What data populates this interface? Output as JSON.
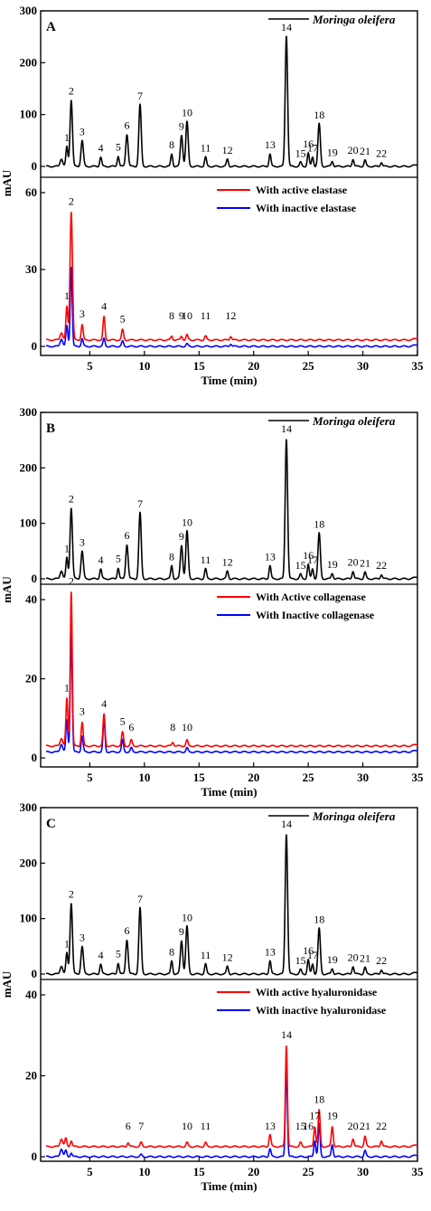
{
  "chart_data": [
    {
      "panel": "A",
      "type": "line",
      "xlabel": "Time (min)",
      "ylabel": "mAU",
      "xlim": [
        0.5,
        35
      ],
      "xticks": [
        "5",
        "10",
        "15",
        "20",
        "25",
        "30",
        "35"
      ],
      "xtick_values": [
        5,
        10,
        15,
        20,
        25,
        30,
        35
      ],
      "top": {
        "ylim": [
          0,
          300
        ],
        "yticks": [
          "0",
          "100",
          "200",
          "300"
        ],
        "ytick_values": [
          0,
          100,
          200,
          300
        ],
        "series_label": "Moringa oleifera",
        "series": [
          {
            "color": "#000000",
            "baseline": 0,
            "peaks": [
              {
                "label": "1",
                "t": 2.9,
                "h": 38
              },
              {
                "label": "2",
                "t": 3.3,
                "h": 128
              },
              {
                "label": "3",
                "t": 4.3,
                "h": 50
              },
              {
                "label": "4",
                "t": 6.0,
                "h": 18
              },
              {
                "label": "5",
                "t": 7.6,
                "h": 20
              },
              {
                "label": "6",
                "t": 8.4,
                "h": 62
              },
              {
                "label": "7",
                "t": 9.6,
                "h": 119
              },
              {
                "label": "8",
                "t": 12.5,
                "h": 24
              },
              {
                "label": "9",
                "t": 13.4,
                "h": 60
              },
              {
                "label": "10",
                "t": 13.9,
                "h": 86
              },
              {
                "label": "11",
                "t": 15.6,
                "h": 18
              },
              {
                "label": "12",
                "t": 17.6,
                "h": 14
              },
              {
                "label": "13",
                "t": 21.5,
                "h": 24
              },
              {
                "label": "14",
                "t": 23.0,
                "h": 252
              },
              {
                "label": "15",
                "t": 24.3,
                "h": 8
              },
              {
                "label": "16",
                "t": 25.0,
                "h": 26
              },
              {
                "label": "17",
                "t": 25.4,
                "h": 18
              },
              {
                "label": "18",
                "t": 26.0,
                "h": 82
              },
              {
                "label": "19",
                "t": 27.2,
                "h": 10
              },
              {
                "label": "20",
                "t": 29.1,
                "h": 14
              },
              {
                "label": "21",
                "t": 30.2,
                "h": 12
              },
              {
                "label": "22",
                "t": 31.7,
                "h": 8
              }
            ]
          }
        ]
      },
      "bottom": {
        "ylim": [
          -2,
          66
        ],
        "yticks": [
          "0",
          "30",
          "60"
        ],
        "ytick_values": [
          0,
          30,
          60
        ],
        "series": [
          {
            "name": "With active elastase",
            "color": "#ff0000",
            "baseline": 2.5,
            "peaks": [
              {
                "label": "1",
                "t": 2.9,
                "h": 13
              },
              {
                "label": "2",
                "t": 3.3,
                "h": 50
              },
              {
                "label": "3",
                "t": 4.3,
                "h": 6
              },
              {
                "label": "4",
                "t": 6.3,
                "h": 9
              },
              {
                "label": "5",
                "t": 8.0,
                "h": 4
              },
              {
                "label": "8",
                "t": 12.5,
                "h": 1.5
              },
              {
                "label": "9",
                "t": 13.4,
                "h": 1.5
              },
              {
                "label": "10",
                "t": 13.9,
                "h": 2
              },
              {
                "label": "11",
                "t": 15.6,
                "h": 1.5
              },
              {
                "label": "12",
                "t": 17.9,
                "h": 1.5
              }
            ]
          },
          {
            "name": "With inactive elastase",
            "color": "#0000ff",
            "baseline": 0,
            "peaks": [
              {
                "label": "1",
                "t": 2.9,
                "h": 8
              },
              {
                "label": "2",
                "t": 3.3,
                "h": 31
              },
              {
                "label": "3",
                "t": 4.3,
                "h": 3
              },
              {
                "label": "4",
                "t": 6.3,
                "h": 3
              },
              {
                "label": "5",
                "t": 8.0,
                "h": 2
              },
              {
                "label": "10",
                "t": 13.9,
                "h": 1
              },
              {
                "label": "12",
                "t": 17.9,
                "h": 1
              }
            ]
          }
        ]
      },
      "bottom_peak_labels": [
        "1",
        "2",
        "3",
        "4",
        "5",
        "8",
        "9",
        "10",
        "11",
        "12"
      ]
    },
    {
      "panel": "B",
      "type": "line",
      "xlabel": "Time (min)",
      "ylabel": "mAU",
      "xlim": [
        0.5,
        35
      ],
      "xticks": [
        "5",
        "10",
        "15",
        "20",
        "25",
        "30",
        "35"
      ],
      "xtick_values": [
        5,
        10,
        15,
        20,
        25,
        30,
        35
      ],
      "top": {
        "ylim": [
          0,
          300
        ],
        "yticks": [
          "0",
          "100",
          "200",
          "300"
        ],
        "ytick_values": [
          0,
          100,
          200,
          300
        ],
        "series_label": "Moringa oleifera",
        "series": [
          {
            "color": "#000000",
            "baseline": 0,
            "peaks": [
              {
                "label": "1",
                "t": 2.9,
                "h": 38
              },
              {
                "label": "2",
                "t": 3.3,
                "h": 128
              },
              {
                "label": "3",
                "t": 4.3,
                "h": 50
              },
              {
                "label": "4",
                "t": 6.0,
                "h": 18
              },
              {
                "label": "5",
                "t": 7.6,
                "h": 20
              },
              {
                "label": "6",
                "t": 8.4,
                "h": 62
              },
              {
                "label": "7",
                "t": 9.6,
                "h": 119
              },
              {
                "label": "8",
                "t": 12.5,
                "h": 24
              },
              {
                "label": "9",
                "t": 13.4,
                "h": 60
              },
              {
                "label": "10",
                "t": 13.9,
                "h": 86
              },
              {
                "label": "11",
                "t": 15.6,
                "h": 18
              },
              {
                "label": "12",
                "t": 17.6,
                "h": 14
              },
              {
                "label": "13",
                "t": 21.5,
                "h": 24
              },
              {
                "label": "14",
                "t": 23.0,
                "h": 252
              },
              {
                "label": "15",
                "t": 24.3,
                "h": 8
              },
              {
                "label": "16",
                "t": 25.0,
                "h": 26
              },
              {
                "label": "17",
                "t": 25.4,
                "h": 18
              },
              {
                "label": "18",
                "t": 26.0,
                "h": 82
              },
              {
                "label": "19",
                "t": 27.2,
                "h": 10
              },
              {
                "label": "20",
                "t": 29.1,
                "h": 14
              },
              {
                "label": "21",
                "t": 30.2,
                "h": 12
              },
              {
                "label": "22",
                "t": 31.7,
                "h": 8
              }
            ]
          }
        ]
      },
      "bottom": {
        "ylim": [
          -1,
          48
        ],
        "yticks": [
          "0",
          "20",
          "40"
        ],
        "ytick_values": [
          0,
          20,
          40
        ],
        "series": [
          {
            "name": "With Active collagenase",
            "color": "#ff0000",
            "baseline": 3,
            "peaks": [
              {
                "label": "1",
                "t": 2.9,
                "h": 12
              },
              {
                "label": "2",
                "t": 3.3,
                "h": 39
              },
              {
                "label": "3",
                "t": 4.3,
                "h": 6
              },
              {
                "label": "4",
                "t": 6.3,
                "h": 8
              },
              {
                "label": "5",
                "t": 8.0,
                "h": 3.5
              },
              {
                "label": "6",
                "t": 8.8,
                "h": 1.5
              },
              {
                "label": "8",
                "t": 12.6,
                "h": 1
              },
              {
                "label": "10",
                "t": 13.9,
                "h": 1.5
              }
            ]
          },
          {
            "name": "With Inactive collagenase",
            "color": "#0000ff",
            "baseline": 1.5,
            "peaks": [
              {
                "label": "1",
                "t": 2.9,
                "h": 8
              },
              {
                "label": "2",
                "t": 3.3,
                "h": 30
              },
              {
                "label": "3",
                "t": 4.3,
                "h": 4
              },
              {
                "label": "4",
                "t": 6.3,
                "h": 8
              },
              {
                "label": "5",
                "t": 8.0,
                "h": 3
              },
              {
                "label": "6",
                "t": 8.8,
                "h": 1
              },
              {
                "label": "10",
                "t": 13.9,
                "h": 1
              }
            ]
          }
        ]
      },
      "bottom_peak_labels": [
        "1",
        "2",
        "3",
        "4",
        "5",
        "6",
        "8",
        "10"
      ]
    },
    {
      "panel": "C",
      "type": "line",
      "xlabel": "Time (min)",
      "ylabel": "mAU",
      "xlim": [
        0.5,
        35
      ],
      "xticks": [
        "5",
        "10",
        "15",
        "20",
        "25",
        "30",
        "35"
      ],
      "xtick_values": [
        5,
        10,
        15,
        20,
        25,
        30,
        35
      ],
      "top": {
        "ylim": [
          0,
          300
        ],
        "yticks": [
          "0",
          "100",
          "200",
          "300"
        ],
        "ytick_values": [
          0,
          100,
          200,
          300
        ],
        "series_label": "Moringa oleifera",
        "series": [
          {
            "color": "#000000",
            "baseline": 0,
            "peaks": [
              {
                "label": "1",
                "t": 2.9,
                "h": 38
              },
              {
                "label": "2",
                "t": 3.3,
                "h": 128
              },
              {
                "label": "3",
                "t": 4.3,
                "h": 50
              },
              {
                "label": "4",
                "t": 6.0,
                "h": 18
              },
              {
                "label": "5",
                "t": 7.6,
                "h": 20
              },
              {
                "label": "6",
                "t": 8.4,
                "h": 62
              },
              {
                "label": "7",
                "t": 9.6,
                "h": 119
              },
              {
                "label": "8",
                "t": 12.5,
                "h": 24
              },
              {
                "label": "9",
                "t": 13.4,
                "h": 60
              },
              {
                "label": "10",
                "t": 13.9,
                "h": 86
              },
              {
                "label": "11",
                "t": 15.6,
                "h": 18
              },
              {
                "label": "12",
                "t": 17.6,
                "h": 14
              },
              {
                "label": "13",
                "t": 21.5,
                "h": 24
              },
              {
                "label": "14",
                "t": 23.0,
                "h": 252
              },
              {
                "label": "15",
                "t": 24.3,
                "h": 8
              },
              {
                "label": "16",
                "t": 25.0,
                "h": 26
              },
              {
                "label": "17",
                "t": 25.4,
                "h": 18
              },
              {
                "label": "18",
                "t": 26.0,
                "h": 82
              },
              {
                "label": "19",
                "t": 27.2,
                "h": 10
              },
              {
                "label": "20",
                "t": 29.1,
                "h": 14
              },
              {
                "label": "21",
                "t": 30.2,
                "h": 12
              },
              {
                "label": "22",
                "t": 31.7,
                "h": 8
              }
            ]
          }
        ]
      },
      "bottom": {
        "ylim": [
          -1,
          48
        ],
        "yticks": [
          "0",
          "20",
          "40"
        ],
        "ytick_values": [
          0,
          20,
          40
        ],
        "series": [
          {
            "name": "With active hyaluronidase",
            "color": "#ff0000",
            "baseline": 2.5,
            "peaks": [
              {
                "label": "1",
                "t": 2.8,
                "h": 2
              },
              {
                "label": "2",
                "t": 3.3,
                "h": 1.5
              },
              {
                "label": "6",
                "t": 8.5,
                "h": 1
              },
              {
                "label": "7",
                "t": 9.7,
                "h": 1
              },
              {
                "label": "10",
                "t": 13.9,
                "h": 1
              },
              {
                "label": "11",
                "t": 15.6,
                "h": 1
              },
              {
                "label": "13",
                "t": 21.5,
                "h": 3
              },
              {
                "label": "14",
                "t": 23.0,
                "h": 25
              },
              {
                "label": "15",
                "t": 24.3,
                "h": 1
              },
              {
                "label": "17",
                "t": 25.6,
                "h": 5
              },
              {
                "label": "18",
                "t": 26.0,
                "h": 9
              },
              {
                "label": "19",
                "t": 27.2,
                "h": 5
              },
              {
                "label": "20",
                "t": 29.1,
                "h": 2
              },
              {
                "label": "21",
                "t": 30.2,
                "h": 2.5
              },
              {
                "label": "22",
                "t": 31.7,
                "h": 1.5
              }
            ]
          },
          {
            "name": "With inactive hyaluronidase",
            "color": "#0000ff",
            "baseline": 0,
            "peaks": [
              {
                "label": "1",
                "t": 2.8,
                "h": 1.5
              },
              {
                "label": "2",
                "t": 3.3,
                "h": 1
              },
              {
                "label": "7",
                "t": 9.7,
                "h": 0.5
              },
              {
                "label": "13",
                "t": 21.5,
                "h": 2
              },
              {
                "label": "14",
                "t": 23.0,
                "h": 22
              },
              {
                "label": "17",
                "t": 25.6,
                "h": 4
              },
              {
                "label": "18",
                "t": 26.0,
                "h": 8
              },
              {
                "label": "19",
                "t": 27.2,
                "h": 3
              },
              {
                "label": "21",
                "t": 30.2,
                "h": 1.5
              }
            ]
          }
        ]
      },
      "bottom_peak_labels": [
        "6",
        "7",
        "10",
        "11",
        "13",
        "14",
        "15",
        "16",
        "17",
        "18",
        "19",
        "20",
        "21",
        "22"
      ]
    }
  ]
}
